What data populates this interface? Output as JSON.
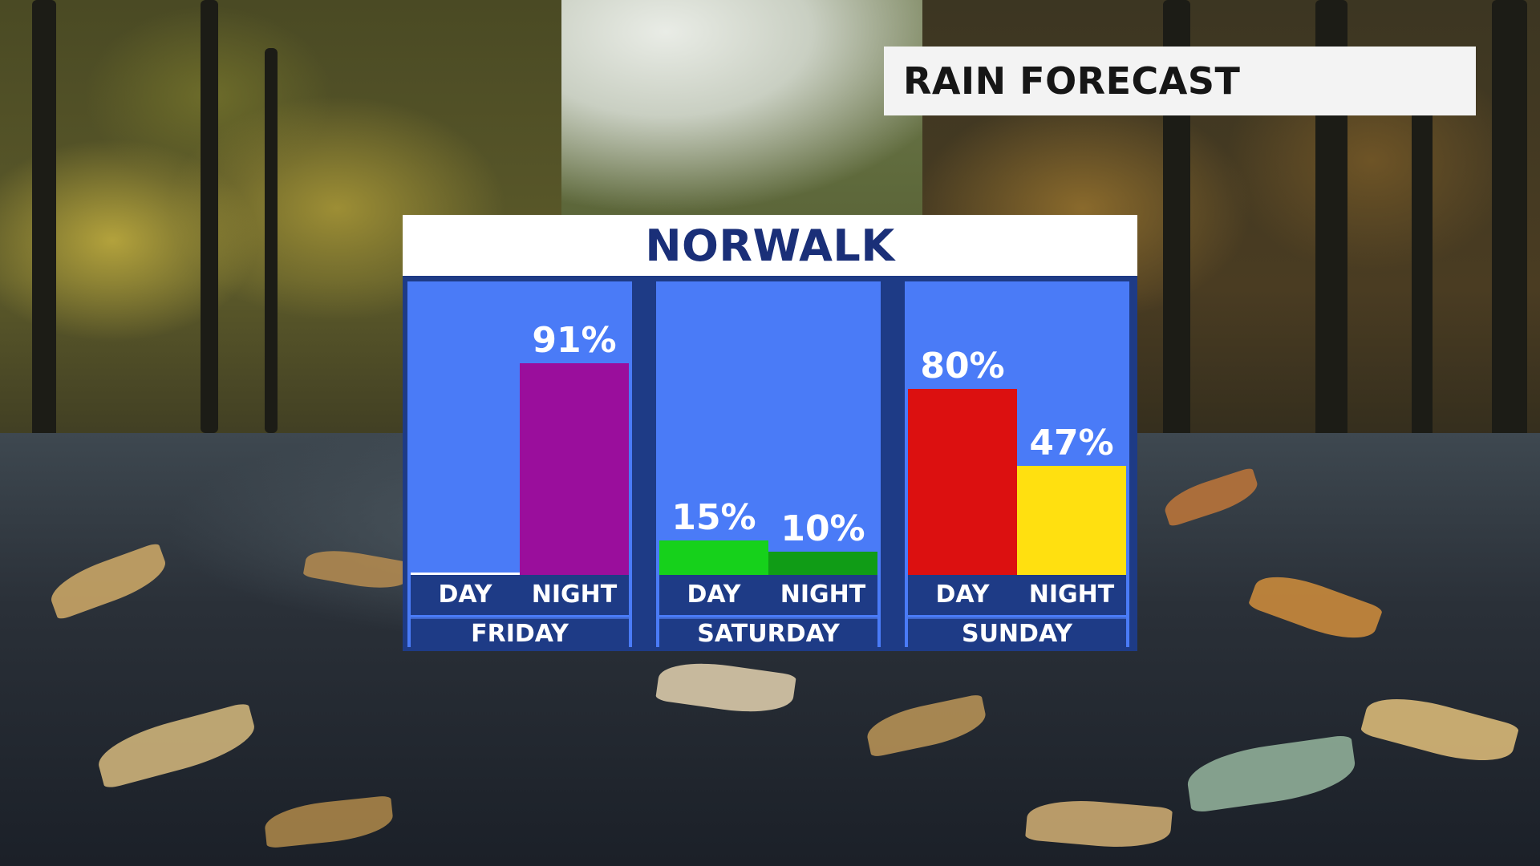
{
  "title": "RAIN FORECAST",
  "chart_data": {
    "type": "bar",
    "title": "NORWALK",
    "unit": "%",
    "ylim": [
      0,
      100
    ],
    "groups": [
      {
        "day": "FRIDAY",
        "bars": [
          {
            "period": "DAY",
            "value": 0,
            "label": "",
            "color": "#ffffff"
          },
          {
            "period": "NIGHT",
            "value": 91,
            "label": "91%",
            "color": "#9a0e9c"
          }
        ]
      },
      {
        "day": "SATURDAY",
        "bars": [
          {
            "period": "DAY",
            "value": 15,
            "label": "15%",
            "color": "#16d11b"
          },
          {
            "period": "NIGHT",
            "value": 10,
            "label": "10%",
            "color": "#109c16"
          }
        ]
      },
      {
        "day": "SUNDAY",
        "bars": [
          {
            "period": "DAY",
            "value": 80,
            "label": "80%",
            "color": "#dc1010"
          },
          {
            "period": "NIGHT",
            "value": 47,
            "label": "47%",
            "color": "#ffe010"
          }
        ]
      }
    ]
  },
  "colors": {
    "panel_bg": "#4a7bf7",
    "panel_frame": "#1e3b86",
    "location_text": "#1a2f78"
  }
}
